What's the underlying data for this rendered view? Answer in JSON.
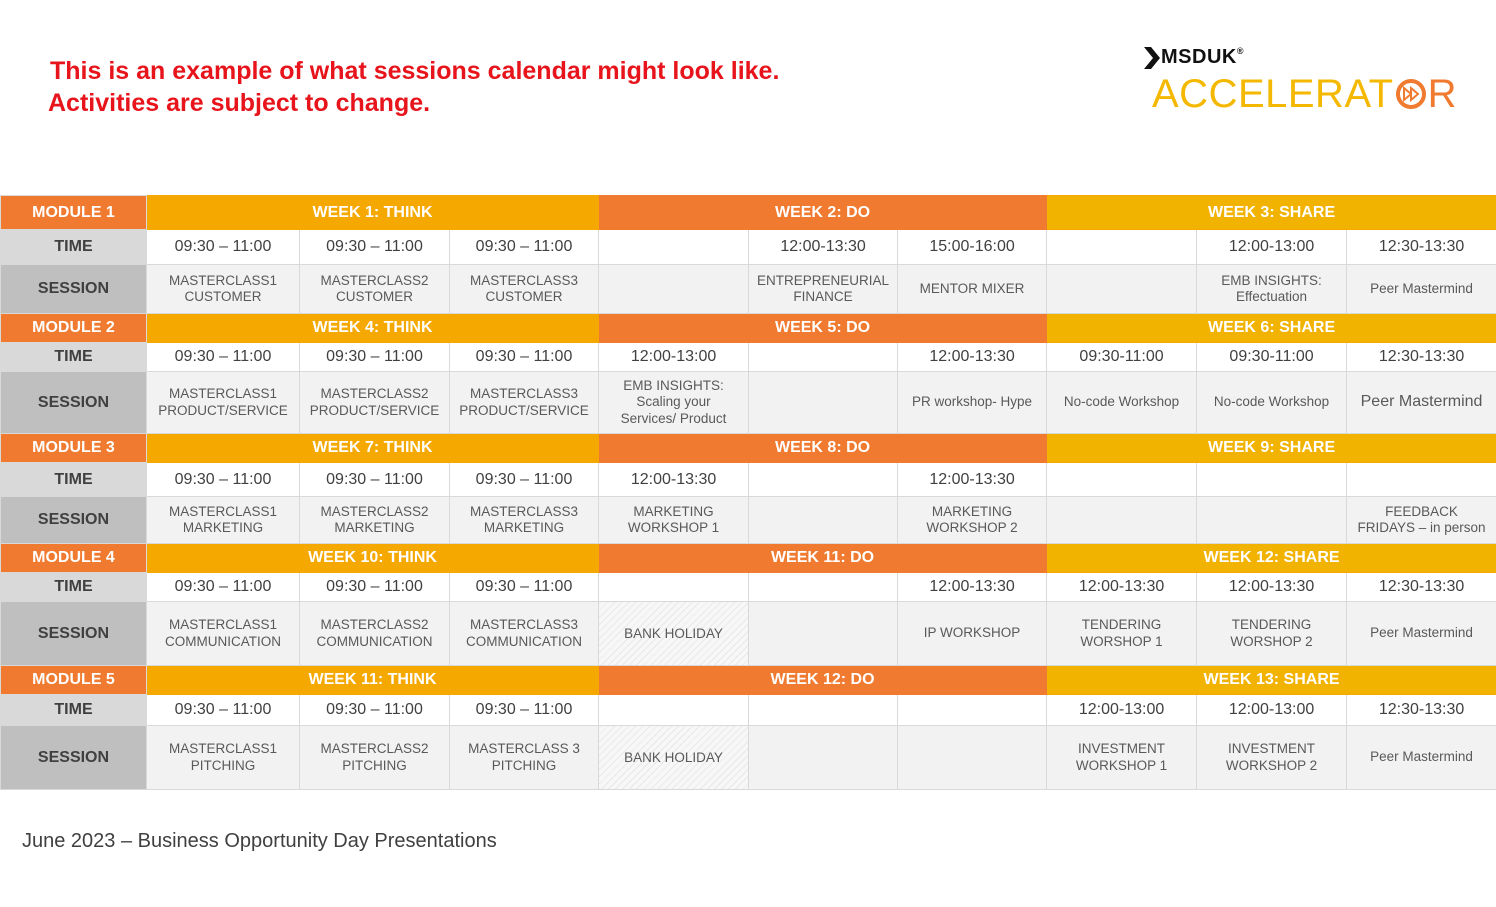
{
  "notice": {
    "line1": "This is an example of what sessions calendar might look like.",
    "line2": "Activities are subject to change."
  },
  "logo": {
    "brand": "MSDUK",
    "trademark": "®",
    "product_prefix": "ACCELERAT",
    "product_suffix": "R",
    "icon": "fast-forward-ring-icon",
    "colors": {
      "yellow": "#f5b800",
      "orange": "#f07a2f",
      "dark": "#111111"
    }
  },
  "colors": {
    "module": "#f07a2f",
    "think": "#f5a800",
    "do": "#f07a2f",
    "share": "#f2b200",
    "time_label": "#d9d9d9",
    "session_label": "#bfbfbf",
    "session_cell": "#f2f2f2"
  },
  "time_label": "TIME",
  "session_label": "SESSION",
  "modules": [
    {
      "title": "MODULE 1",
      "weeks": [
        "WEEK 1: THINK",
        "WEEK 2: DO",
        "WEEK 3: SHARE"
      ],
      "times": [
        "09:30 – 11:00",
        "09:30 – 11:00",
        "09:30 – 11:00",
        "",
        "12:00-13:30",
        "15:00-16:00",
        "",
        "12:00-13:00",
        "12:30-13:30"
      ],
      "sessions": [
        [
          "MASTERCLASS1",
          "CUSTOMER"
        ],
        [
          "MASTERCLASS2",
          "CUSTOMER"
        ],
        [
          "MASTERCLASS3",
          "CUSTOMER"
        ],
        [],
        [
          "ENTREPRENEURIAL",
          "FINANCE"
        ],
        [
          "MENTOR  MIXER"
        ],
        [],
        [
          "EMB INSIGHTS:",
          "Effectuation"
        ],
        [
          "Peer Mastermind"
        ]
      ]
    },
    {
      "title": "MODULE 2",
      "weeks": [
        "WEEK 4: THINK",
        "WEEK 5: DO",
        "WEEK 6: SHARE"
      ],
      "times": [
        "09:30 – 11:00",
        "09:30 – 11:00",
        "09:30 – 11:00",
        "12:00-13:00",
        "",
        "12:00-13:30",
        "09:30-11:00",
        "09:30-11:00",
        "12:30-13:30"
      ],
      "sessions": [
        [
          "MASTERCLASS1",
          "PRODUCT/SERVICE"
        ],
        [
          "MASTERCLASS2",
          "PRODUCT/SERVICE"
        ],
        [
          "MASTERCLASS3",
          "PRODUCT/SERVICE"
        ],
        [
          "EMB INSIGHTS:",
          "Scaling your",
          "Services/ Product"
        ],
        [],
        [
          "PR workshop- Hype"
        ],
        [
          "No-code  Workshop"
        ],
        [
          "No-code  Workshop"
        ],
        [
          "Peer Mastermind"
        ]
      ]
    },
    {
      "title": "MODULE 3",
      "weeks": [
        "WEEK 7: THINK",
        "WEEK 8: DO",
        "WEEK 9: SHARE"
      ],
      "times": [
        "09:30 – 11:00",
        "09:30 – 11:00",
        "09:30 – 11:00",
        "12:00-13:30",
        "",
        "12:00-13:30",
        "",
        "",
        ""
      ],
      "sessions": [
        [
          "MASTERCLASS1",
          "MARKETING"
        ],
        [
          "MASTERCLASS2",
          "MARKETING"
        ],
        [
          "MASTERCLASS3",
          "MARKETING"
        ],
        [
          "MARKETING",
          "WORKSHOP  1"
        ],
        [],
        [
          "MARKETING",
          "WORKSHOP  2"
        ],
        [],
        [],
        [
          "FEEDBACK",
          "FRIDAYS – in person"
        ]
      ]
    },
    {
      "title": "MODULE 4",
      "weeks": [
        "WEEK 10: THINK",
        "WEEK 11: DO",
        "WEEK 12: SHARE"
      ],
      "times": [
        "09:30 – 11:00",
        "09:30 – 11:00",
        "09:30 – 11:00",
        "",
        "",
        "12:00-13:30",
        "12:00-13:30",
        "12:00-13:30",
        "12:30-13:30"
      ],
      "sessions": [
        [
          "MASTERCLASS1",
          "COMMUNICATION"
        ],
        [
          "MASTERCLASS2",
          "COMMUNICATION"
        ],
        [
          "MASTERCLASS3",
          "COMMUNICATION"
        ],
        [
          "BANK HOLIDAY"
        ],
        [],
        [
          "IP WORKSHOP"
        ],
        [
          "TENDERING",
          "WORSHOP  1"
        ],
        [
          "TENDERING",
          "WORSHOP  2"
        ],
        [
          "Peer Mastermind"
        ]
      ]
    },
    {
      "title": "MODULE 5",
      "weeks": [
        "WEEK 11: THINK",
        "WEEK 12: DO",
        "WEEK 13: SHARE"
      ],
      "times": [
        "09:30 – 11:00",
        "09:30 – 11:00",
        "09:30 – 11:00",
        "",
        "",
        "",
        "12:00-13:00",
        "12:00-13:00",
        "12:30-13:30"
      ],
      "sessions": [
        [
          "MASTERCLASS1",
          "PITCHING"
        ],
        [
          "MASTERCLASS2",
          "PITCHING"
        ],
        [
          "MASTERCLASS 3",
          "PITCHING"
        ],
        [
          "BANK HOLIDAY"
        ],
        [],
        [],
        [
          "INVESTMENT",
          "WORKSHOP  1"
        ],
        [
          "INVESTMENT",
          "WORKSHOP  2"
        ],
        [
          "Peer Mastermind"
        ]
      ]
    }
  ],
  "footer": "June 2023 – Business Opportunity  Day Presentations"
}
